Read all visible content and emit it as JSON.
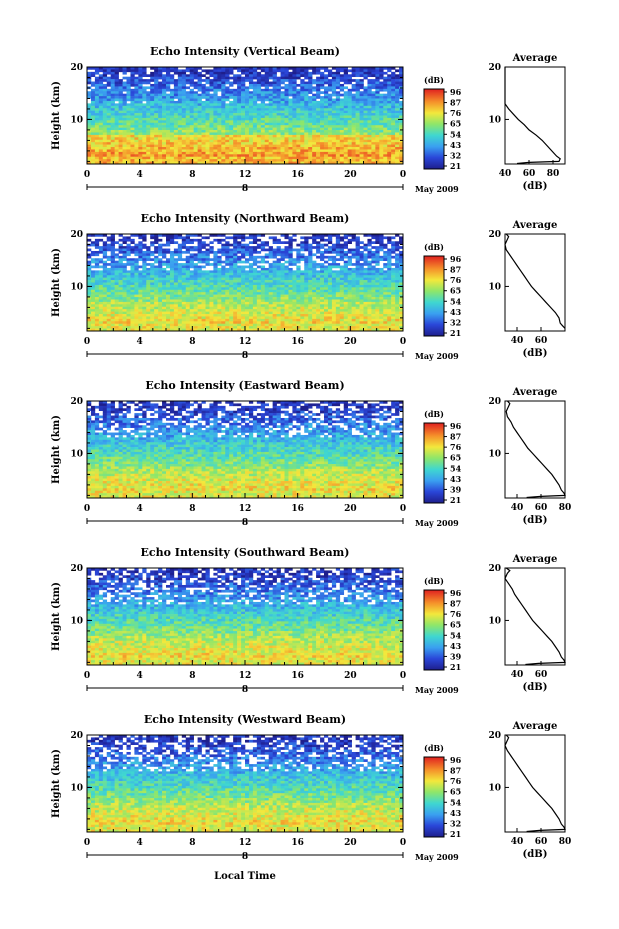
{
  "figure": {
    "x_label": "Local Time",
    "date_label": "May 2009",
    "height_label": "Height (km)",
    "unit_label": "(dB)",
    "average_title": "Average",
    "average_xlabel": "(dB)"
  },
  "chart_data": [
    {
      "type": "heatmap",
      "title": "Echo Intensity (Vertical Beam)",
      "xlabel": "",
      "ylabel": "Height (km)",
      "x_ticks": [
        "0",
        "4",
        "8",
        "12",
        "16",
        "20",
        "0"
      ],
      "x_range_hours": [
        0,
        24
      ],
      "day_label": "8",
      "y_ticks": [
        10,
        20
      ],
      "y_range_km": [
        1.5,
        20
      ],
      "colorbar_label": "(dB)",
      "colorbar_ticks": [
        96,
        87,
        76,
        65,
        54,
        43,
        32,
        21
      ],
      "average_profile": {
        "title": "Average",
        "xlabel": "(dB)",
        "x_ticks": [
          40,
          60,
          80
        ],
        "x_range": [
          40,
          90
        ],
        "y_ticks": [
          10,
          20
        ],
        "points": [
          [
            28,
            20
          ],
          [
            30,
            19.5
          ],
          [
            30,
            19
          ],
          [
            28,
            18.5
          ],
          [
            30,
            18
          ],
          [
            29,
            17
          ],
          [
            31,
            16
          ],
          [
            32,
            15
          ],
          [
            36,
            14
          ],
          [
            39,
            13
          ],
          [
            43,
            12
          ],
          [
            47,
            11
          ],
          [
            51,
            10
          ],
          [
            56,
            9
          ],
          [
            60,
            8
          ],
          [
            66,
            7
          ],
          [
            71,
            6
          ],
          [
            75,
            5
          ],
          [
            79,
            4
          ],
          [
            83,
            3
          ],
          [
            86,
            2.5
          ],
          [
            85,
            2
          ],
          [
            60,
            1.8
          ],
          [
            50,
            1.6
          ]
        ]
      }
    },
    {
      "type": "heatmap",
      "title": "Echo Intensity (Northward Beam)",
      "xlabel": "",
      "ylabel": "Height (km)",
      "x_ticks": [
        "0",
        "4",
        "8",
        "12",
        "16",
        "20",
        "0"
      ],
      "x_range_hours": [
        0,
        24
      ],
      "day_label": "8",
      "y_ticks": [
        10,
        20
      ],
      "y_range_km": [
        1.5,
        20
      ],
      "colorbar_label": "(dB)",
      "colorbar_ticks": [
        96,
        87,
        76,
        65,
        54,
        43,
        32,
        21
      ],
      "average_profile": {
        "title": "Average",
        "xlabel": "(dB)",
        "x_ticks": [
          40,
          60
        ],
        "x_range": [
          30,
          80
        ],
        "y_ticks": [
          10,
          20
        ],
        "points": [
          [
            31,
            20
          ],
          [
            33,
            19.5
          ],
          [
            32,
            19
          ],
          [
            30,
            18
          ],
          [
            31,
            17
          ],
          [
            34,
            16
          ],
          [
            37,
            15
          ],
          [
            40,
            14
          ],
          [
            43,
            13
          ],
          [
            46,
            12
          ],
          [
            49,
            11
          ],
          [
            52,
            10
          ],
          [
            56,
            9
          ],
          [
            60,
            8
          ],
          [
            64,
            7
          ],
          [
            68,
            6
          ],
          [
            72,
            5
          ],
          [
            75,
            4
          ],
          [
            76,
            3
          ],
          [
            78,
            2.5
          ],
          [
            80,
            2
          ]
        ]
      }
    },
    {
      "type": "heatmap",
      "title": "Echo Intensity (Eastward Beam)",
      "xlabel": "",
      "ylabel": "Height (km)",
      "x_ticks": [
        "0",
        "4",
        "8",
        "12",
        "16",
        "20",
        "0"
      ],
      "x_range_hours": [
        0,
        24
      ],
      "day_label": "8",
      "y_ticks": [
        10,
        20
      ],
      "y_range_km": [
        1.5,
        20
      ],
      "colorbar_label": "(dB)",
      "colorbar_ticks": [
        96,
        87,
        76,
        65,
        54,
        43,
        39,
        21
      ],
      "average_profile": {
        "title": "Average",
        "xlabel": "(dB)",
        "x_ticks": [
          40,
          60,
          80
        ],
        "x_range": [
          30,
          80
        ],
        "y_ticks": [
          10,
          20
        ],
        "points": [
          [
            32,
            20
          ],
          [
            34,
            19.5
          ],
          [
            33,
            19
          ],
          [
            31,
            18
          ],
          [
            32,
            17
          ],
          [
            35,
            16
          ],
          [
            37,
            15
          ],
          [
            40,
            14
          ],
          [
            43,
            13
          ],
          [
            46,
            12
          ],
          [
            49,
            11
          ],
          [
            53,
            10
          ],
          [
            57,
            9
          ],
          [
            61,
            8
          ],
          [
            65,
            7
          ],
          [
            69,
            6
          ],
          [
            72,
            5
          ],
          [
            75,
            4
          ],
          [
            77,
            3
          ],
          [
            79,
            2.5
          ],
          [
            80,
            2
          ],
          [
            60,
            1.8
          ],
          [
            48,
            1.6
          ]
        ]
      }
    },
    {
      "type": "heatmap",
      "title": "Echo Intensity (Southward Beam)",
      "xlabel": "",
      "ylabel": "Height (km)",
      "x_ticks": [
        "0",
        "4",
        "8",
        "12",
        "16",
        "20",
        "0"
      ],
      "x_range_hours": [
        0,
        24
      ],
      "day_label": "8",
      "y_ticks": [
        10,
        20
      ],
      "y_range_km": [
        1.5,
        20
      ],
      "colorbar_label": "(dB)",
      "colorbar_ticks": [
        96,
        87,
        76,
        65,
        54,
        43,
        39,
        21
      ],
      "average_profile": {
        "title": "Average",
        "xlabel": "(dB)",
        "x_ticks": [
          40,
          60
        ],
        "x_range": [
          30,
          80
        ],
        "y_ticks": [
          10,
          20
        ],
        "points": [
          [
            31,
            20
          ],
          [
            34,
            19.5
          ],
          [
            32,
            19
          ],
          [
            30,
            18
          ],
          [
            33,
            17
          ],
          [
            36,
            16
          ],
          [
            38,
            15
          ],
          [
            41,
            14
          ],
          [
            44,
            13
          ],
          [
            47,
            12
          ],
          [
            50,
            11
          ],
          [
            53,
            10
          ],
          [
            57,
            9
          ],
          [
            61,
            8
          ],
          [
            65,
            7
          ],
          [
            69,
            6
          ],
          [
            72,
            5
          ],
          [
            75,
            4
          ],
          [
            77,
            3
          ],
          [
            79,
            2.5
          ],
          [
            80,
            2
          ],
          [
            58,
            1.8
          ],
          [
            47,
            1.6
          ]
        ]
      }
    },
    {
      "type": "heatmap",
      "title": "Echo Intensity (Westward Beam)",
      "xlabel": "Local Time",
      "ylabel": "Height (km)",
      "x_ticks": [
        "0",
        "4",
        "8",
        "12",
        "16",
        "20",
        "0"
      ],
      "x_range_hours": [
        0,
        24
      ],
      "day_label": "8",
      "y_ticks": [
        10,
        20
      ],
      "y_range_km": [
        1.5,
        20
      ],
      "colorbar_label": "(dB)",
      "colorbar_ticks": [
        96,
        87,
        76,
        65,
        54,
        43,
        32,
        21
      ],
      "average_profile": {
        "title": "Average",
        "xlabel": "(dB)",
        "x_ticks": [
          40,
          60,
          80
        ],
        "x_range": [
          30,
          80
        ],
        "y_ticks": [
          10,
          20
        ],
        "points": [
          [
            31,
            20
          ],
          [
            33,
            19.5
          ],
          [
            32,
            19
          ],
          [
            30,
            18
          ],
          [
            32,
            17
          ],
          [
            35,
            16
          ],
          [
            38,
            15
          ],
          [
            41,
            14
          ],
          [
            44,
            13
          ],
          [
            47,
            12
          ],
          [
            50,
            11
          ],
          [
            53,
            10
          ],
          [
            57,
            9
          ],
          [
            61,
            8
          ],
          [
            65,
            7
          ],
          [
            69,
            6
          ],
          [
            72,
            5
          ],
          [
            75,
            4
          ],
          [
            77,
            3
          ],
          [
            79,
            2.5
          ],
          [
            80,
            2
          ],
          [
            59,
            1.8
          ],
          [
            48,
            1.6
          ]
        ]
      }
    }
  ]
}
